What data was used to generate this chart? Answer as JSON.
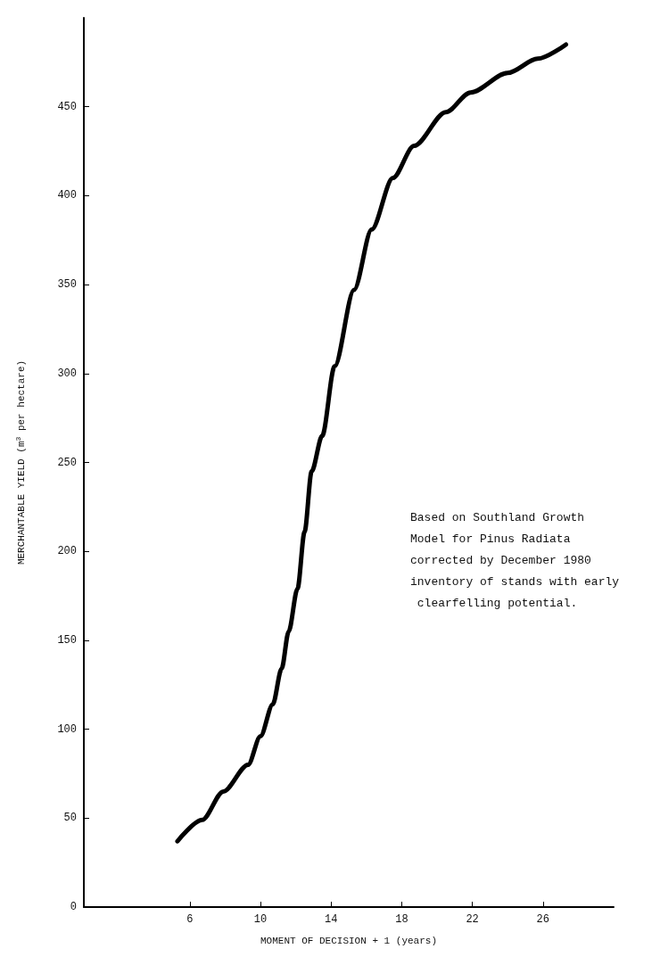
{
  "chart_data": {
    "type": "line",
    "xlabel": "MOMENT OF DECISION + 1 (years)",
    "ylabel": "MERCHANTABLE YIELD (m$^{3}$ per hectare)",
    "annotations": [
      "Based on Southland Growth Model for Pinus Radiata corrected by December 1980 inventory of stands with early clearfelling potential."
    ],
    "xlim": [
      0,
      30
    ],
    "xticks": [
      6,
      10,
      14,
      18,
      22,
      26
    ],
    "ylim": [
      0,
      500
    ],
    "yticks": [
      0,
      50,
      100,
      150,
      200,
      250,
      300,
      350,
      400,
      450
    ],
    "grid": false,
    "marker": "none",
    "line_style": "solid",
    "series": [
      {
        "color": "#000000",
        "x": [
          5.3,
          6.7,
          7.9,
          9.3,
          10,
          10.7,
          11.2,
          11.6,
          12.1,
          12.5,
          12.9,
          13.5,
          14.2,
          15.3,
          16.3,
          17.5,
          18.7,
          20.5,
          21.9,
          24.0,
          25.7,
          27.3
        ],
        "values": [
          37,
          49,
          65,
          80,
          96,
          114,
          134,
          155,
          179,
          211,
          245,
          265,
          304,
          347,
          381,
          410,
          428,
          447,
          458,
          469,
          477,
          485
        ]
      }
    ]
  }
}
